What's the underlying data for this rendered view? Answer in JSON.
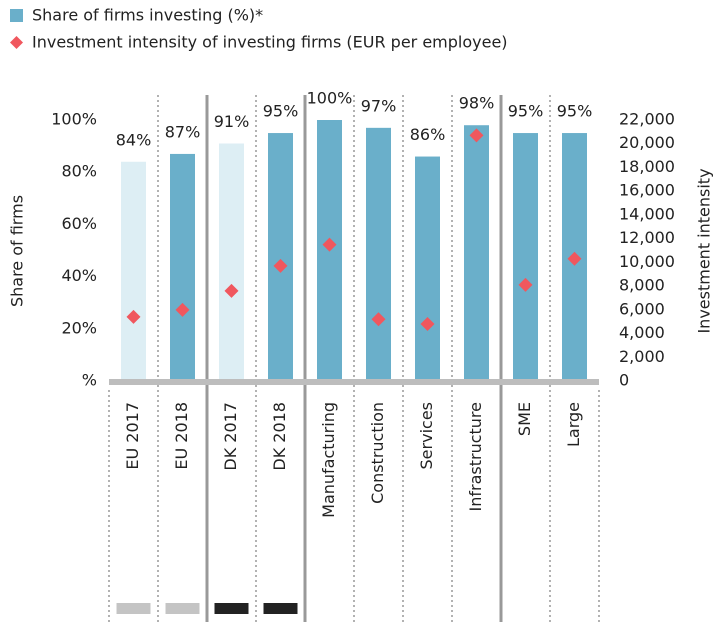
{
  "chart_data": {
    "type": "bar",
    "categories": [
      "EU 2017",
      "EU 2018",
      "DK 2017",
      "DK 2018",
      "Manufacturing",
      "Construction",
      "Services",
      "Infrastructure",
      "SME",
      "Large"
    ],
    "series": [
      {
        "name": "Share of firms investing (%)*",
        "color": "#6aafca",
        "light_color": "#ddeef4",
        "values": [
          84,
          87,
          91,
          95,
          100,
          97,
          86,
          98,
          95,
          95
        ],
        "value_labels": [
          "84%",
          "87%",
          "91%",
          "95%",
          "100%",
          "97%",
          "86%",
          "98%",
          "95%",
          "95%"
        ]
      },
      {
        "name": "Investment intensity of investing firms (EUR per employee)",
        "color": "#f0575e",
        "axis": "y2",
        "values": [
          5400,
          6000,
          7600,
          9700,
          11500,
          5200,
          4800,
          20700,
          8100,
          10300
        ]
      }
    ],
    "y_label": "Share of firms",
    "y2_label": "Investment intensity",
    "ylim": [
      0,
      100
    ],
    "yticks": [
      {
        "value": 0,
        "label": "%"
      },
      {
        "value": 20,
        "label": "20%"
      },
      {
        "value": 40,
        "label": "40%"
      },
      {
        "value": 60,
        "label": "60%"
      },
      {
        "value": 80,
        "label": "80%"
      },
      {
        "value": 100,
        "label": "100%"
      }
    ],
    "y2lim": [
      0,
      22000
    ],
    "y2ticks": [
      0,
      {
        "value": 2000,
        "label": "2,000"
      },
      {
        "value": 4000,
        "label": "4,000"
      },
      {
        "value": 6000,
        "label": "6,000"
      },
      {
        "value": 8000,
        "label": "8,000"
      },
      {
        "value": 10000,
        "label": "10,000"
      },
      {
        "value": 12000,
        "label": "12,000"
      },
      {
        "value": 14000,
        "label": "14,000"
      },
      {
        "value": 16000,
        "label": "16,000"
      },
      {
        "value": 18000,
        "label": "18,000"
      },
      {
        "value": 20000,
        "label": "20,000"
      },
      {
        "value": 22000,
        "label": "22,000"
      }
    ],
    "legend": "top-left"
  }
}
